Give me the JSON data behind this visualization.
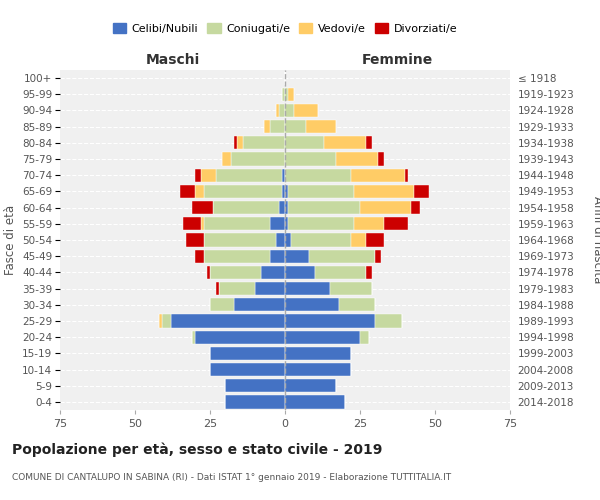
{
  "age_groups": [
    "0-4",
    "5-9",
    "10-14",
    "15-19",
    "20-24",
    "25-29",
    "30-34",
    "35-39",
    "40-44",
    "45-49",
    "50-54",
    "55-59",
    "60-64",
    "65-69",
    "70-74",
    "75-79",
    "80-84",
    "85-89",
    "90-94",
    "95-99",
    "100+"
  ],
  "birth_years": [
    "2014-2018",
    "2009-2013",
    "2004-2008",
    "1999-2003",
    "1994-1998",
    "1989-1993",
    "1984-1988",
    "1979-1983",
    "1974-1978",
    "1969-1973",
    "1964-1968",
    "1959-1963",
    "1954-1958",
    "1949-1953",
    "1944-1948",
    "1939-1943",
    "1934-1938",
    "1929-1933",
    "1924-1928",
    "1919-1923",
    "≤ 1918"
  ],
  "male": {
    "celibi": [
      20,
      20,
      25,
      25,
      30,
      38,
      17,
      10,
      8,
      5,
      3,
      5,
      2,
      1,
      1,
      0,
      0,
      0,
      0,
      0,
      0
    ],
    "coniugati": [
      0,
      0,
      0,
      0,
      1,
      3,
      8,
      12,
      17,
      22,
      24,
      22,
      22,
      26,
      22,
      18,
      14,
      5,
      2,
      1,
      0
    ],
    "vedovi": [
      0,
      0,
      0,
      0,
      0,
      1,
      0,
      0,
      0,
      0,
      0,
      1,
      0,
      3,
      5,
      3,
      2,
      2,
      1,
      0,
      0
    ],
    "divorziati": [
      0,
      0,
      0,
      0,
      0,
      0,
      0,
      1,
      1,
      3,
      6,
      6,
      7,
      5,
      2,
      0,
      1,
      0,
      0,
      0,
      0
    ]
  },
  "female": {
    "nubili": [
      20,
      17,
      22,
      22,
      25,
      30,
      18,
      15,
      10,
      8,
      2,
      1,
      1,
      1,
      0,
      0,
      0,
      0,
      0,
      0,
      0
    ],
    "coniugate": [
      0,
      0,
      0,
      0,
      3,
      9,
      12,
      14,
      17,
      22,
      20,
      22,
      24,
      22,
      22,
      17,
      13,
      7,
      3,
      1,
      0
    ],
    "vedove": [
      0,
      0,
      0,
      0,
      0,
      0,
      0,
      0,
      0,
      0,
      5,
      10,
      17,
      20,
      18,
      14,
      14,
      10,
      8,
      2,
      0
    ],
    "divorziate": [
      0,
      0,
      0,
      0,
      0,
      0,
      0,
      0,
      2,
      2,
      6,
      8,
      3,
      5,
      1,
      2,
      2,
      0,
      0,
      0,
      0
    ]
  },
  "colors": {
    "celibi": "#4472C4",
    "coniugati": "#C6D9A0",
    "vedovi": "#FFCC66",
    "divorziati": "#CC0000"
  },
  "xlim": 75,
  "title": "Popolazione per età, sesso e stato civile - 2019",
  "subtitle": "COMUNE DI CANTALUPO IN SABINA (RI) - Dati ISTAT 1° gennaio 2019 - Elaborazione TUTTITALIA.IT",
  "ylabel_left": "Fasce di età",
  "ylabel_right": "Anni di nascita",
  "xlabel_left": "Maschi",
  "xlabel_right": "Femmine",
  "bg_color": "#f0f0f0",
  "grid_color": "#cccccc"
}
